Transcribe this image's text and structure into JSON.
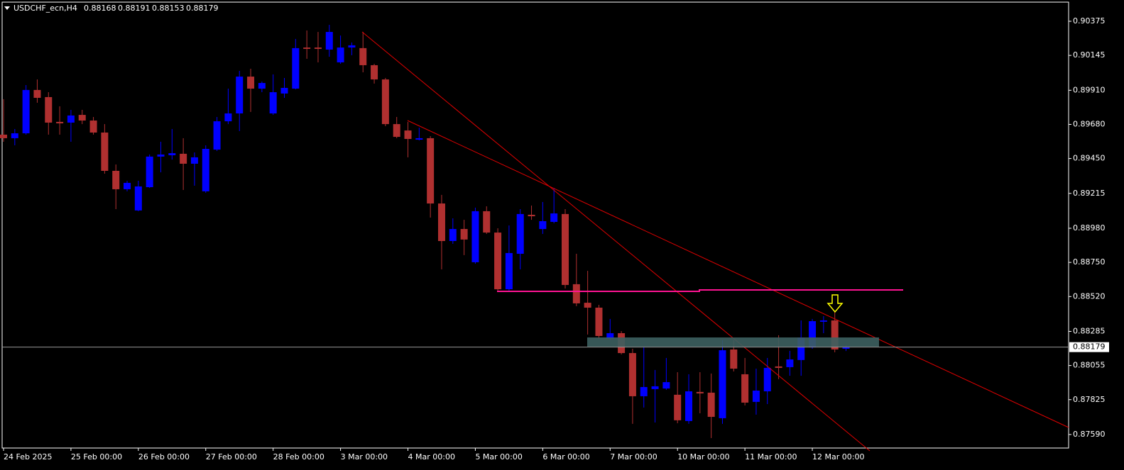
{
  "chart_data": {
    "type": "candlestick",
    "title": "USDCHF_ecn,H4",
    "categories": [
      "24 Feb 2025",
      null,
      null,
      null,
      null,
      null,
      "25 Feb 00:00",
      null,
      null,
      null,
      null,
      null,
      "26 Feb 00:00",
      null,
      null,
      null,
      null,
      null,
      "27 Feb 00:00",
      null,
      null,
      null,
      null,
      null,
      "28 Feb 00:00",
      null,
      null,
      null,
      null,
      null,
      "3 Mar 00:00",
      null,
      null,
      null,
      null,
      null,
      "4 Mar 00:00",
      null,
      null,
      null,
      null,
      null,
      "5 Mar 00:00",
      null,
      null,
      null,
      null,
      null,
      "6 Mar 00:00",
      null,
      null,
      null,
      null,
      null,
      "7 Mar 00:00",
      null,
      null,
      null,
      null,
      null,
      "10 Mar 00:00",
      null,
      null,
      null,
      null,
      null,
      "11 Mar 00:00",
      null,
      null,
      null,
      null,
      null,
      "12 Mar 00:00",
      null,
      null,
      null
    ],
    "open": [
      0.89611,
      0.89587,
      0.8962,
      0.89912,
      0.89864,
      0.89697,
      0.89692,
      0.89744,
      0.89706,
      0.89625,
      0.89367,
      0.89243,
      0.891,
      0.89257,
      0.89463,
      0.89472,
      0.89482,
      0.89415,
      0.89229,
      0.8951,
      0.89701,
      0.89754,
      0.90002,
      0.89921,
      0.89754,
      0.89888,
      0.89921,
      0.90198,
      0.90198,
      0.90184,
      0.90098,
      0.90198,
      0.90194,
      0.90079,
      0.89983,
      0.89682,
      0.89639,
      0.89577,
      0.89587,
      0.89147,
      0.88894,
      0.88975,
      0.88751,
      0.89095,
      0.88951,
      0.88569,
      0.88808,
      0.89071,
      0.88975,
      0.89023,
      0.89076,
      0.88603,
      0.88478,
      0.88445,
      0.88235,
      0.88273,
      0.88139,
      0.87848,
      0.87896,
      0.879,
      0.87858,
      0.87681,
      0.87877,
      0.87872,
      0.877,
      0.88163,
      0.87996,
      0.8781,
      0.87881,
      0.88049,
      0.88044,
      0.88092,
      0.88178,
      0.8835,
      0.88359,
      0.88168
    ],
    "high": [
      0.8985,
      0.89649,
      0.89945,
      0.89983,
      0.89897,
      0.89802,
      0.89778,
      0.89778,
      0.8973,
      0.89682,
      0.8941,
      0.893,
      0.893,
      0.89477,
      0.89563,
      0.89649,
      0.89587,
      0.89491,
      0.89539,
      0.8973,
      0.89921,
      0.90041,
      0.90055,
      0.89969,
      0.90017,
      0.89993,
      0.90256,
      0.90313,
      0.90303,
      0.90351,
      0.90279,
      0.90232,
      0.90303,
      0.90088,
      0.89993,
      0.8973,
      0.89697,
      0.89658,
      0.89601,
      0.89205,
      0.89047,
      0.89037,
      0.89119,
      0.89128,
      0.8898,
      0.88999,
      0.89109,
      0.89133,
      0.89157,
      0.89252,
      0.89109,
      0.88808,
      0.88693,
      0.88464,
      0.88369,
      0.88287,
      0.88168,
      0.88178,
      0.88025,
      0.88106,
      0.8801,
      0.87996,
      0.8801,
      0.88001,
      0.88225,
      0.88225,
      0.88106,
      0.88034,
      0.88106,
      0.88259,
      0.88154,
      0.88359,
      0.88369,
      0.88388,
      0.88416,
      0.88191
    ],
    "low": [
      0.89563,
      0.89539,
      0.89611,
      0.89826,
      0.89611,
      0.89611,
      0.89563,
      0.89682,
      0.89611,
      0.89348,
      0.89109,
      0.89229,
      0.89095,
      0.89252,
      0.89357,
      0.89443,
      0.89238,
      0.89267,
      0.89219,
      0.89501,
      0.89682,
      0.89635,
      0.89764,
      0.89897,
      0.89744,
      0.89859,
      0.89916,
      0.90122,
      0.90098,
      0.90136,
      0.90088,
      0.90146,
      0.90031,
      0.89955,
      0.89668,
      0.89587,
      0.89458,
      0.89572,
      0.89052,
      0.88703,
      0.88875,
      0.88799,
      0.88741,
      0.88942,
      0.8856,
      0.8856,
      0.88703,
      0.89037,
      0.88942,
      0.89014,
      0.88574,
      0.88455,
      0.88264,
      0.88235,
      0.88225,
      0.8813,
      0.87662,
      0.87772,
      0.87671,
      0.87891,
      0.87666,
      0.87662,
      0.87733,
      0.87566,
      0.87662,
      0.88015,
      0.87786,
      0.87724,
      0.87795,
      0.87963,
      0.87986,
      0.87986,
      0.88168,
      0.88273,
      0.88144,
      0.88153
    ],
    "close": [
      0.89587,
      0.8962,
      0.89912,
      0.89859,
      0.89692,
      0.89687,
      0.8974,
      0.89706,
      0.89625,
      0.89367,
      0.89243,
      0.89286,
      0.89262,
      0.89463,
      0.89477,
      0.89486,
      0.89415,
      0.89458,
      0.89515,
      0.89701,
      0.89754,
      0.90002,
      0.89921,
      0.89959,
      0.89897,
      0.89926,
      0.90194,
      0.90189,
      0.90189,
      0.90303,
      0.90198,
      0.90213,
      0.90079,
      0.89983,
      0.89682,
      0.89596,
      0.89582,
      0.89587,
      0.89147,
      0.88894,
      0.88975,
      0.88904,
      0.89095,
      0.88951,
      0.88569,
      0.88813,
      0.89076,
      0.89061,
      0.89028,
      0.8908,
      0.88598,
      0.88474,
      0.88445,
      0.88254,
      0.88273,
      0.88139,
      0.87848,
      0.8791,
      0.87915,
      0.87943,
      0.87686,
      0.87881,
      0.87867,
      0.87709,
      0.88158,
      0.88034,
      0.87805,
      0.87886,
      0.88039,
      0.88039,
      0.88096,
      0.88244,
      0.88354,
      0.88359,
      0.88163,
      0.88179
    ],
    "up_color": "#0000ff",
    "down_color": "#b03030",
    "ylim": [
      0.87499,
      0.90504
    ],
    "yticks": [
      0.90375,
      0.90145,
      {
        "value": 0.8991,
        "label": "0.89910"
      },
      {
        "value": 0.8968,
        "label": "0.89680"
      },
      {
        "value": 0.8945,
        "label": "0.89450"
      },
      0.89215,
      {
        "value": 0.8898,
        "label": "0.88980"
      },
      {
        "value": 0.8875,
        "label": "0.88750"
      },
      {
        "value": 0.8852,
        "label": "0.88520"
      },
      0.88285,
      0.88055,
      0.87825,
      {
        "value": 0.8759,
        "label": "0.87590"
      }
    ]
  }
}
